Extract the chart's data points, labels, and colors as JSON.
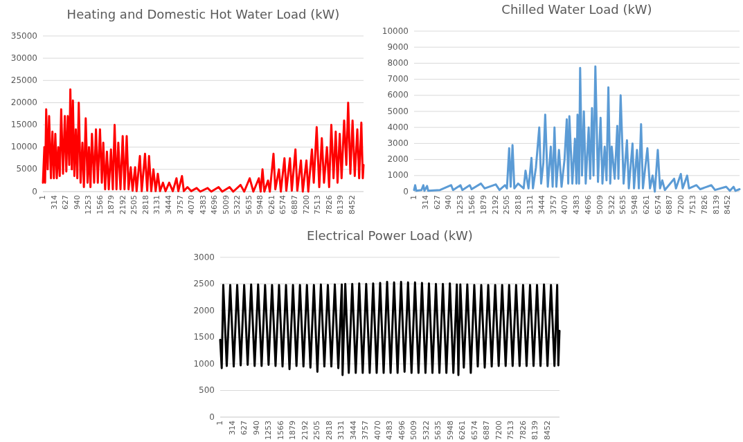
{
  "chart_data": [
    {
      "type": "line",
      "title": "Heating and Domestic Hot Water Load (kW)",
      "xlim": [
        1,
        8760
      ],
      "xticks": [
        1,
        314,
        627,
        940,
        1253,
        1566,
        1879,
        2192,
        2505,
        2818,
        3131,
        3444,
        3757,
        4070,
        4383,
        4696,
        5009,
        5322,
        5635,
        5948,
        6261,
        6574,
        6887,
        7200,
        7513,
        7826,
        8139,
        8452
      ],
      "ylim": [
        0,
        35000
      ],
      "yticks": [
        0,
        5000,
        10000,
        15000,
        20000,
        25000,
        30000,
        35000
      ],
      "grid": "y",
      "series": [
        {
          "color": "#ff0000",
          "x": [
            1,
            40,
            60,
            90,
            130,
            170,
            220,
            260,
            300,
            340,
            380,
            420,
            460,
            500,
            550,
            600,
            640,
            680,
            720,
            750,
            790,
            820,
            860,
            900,
            940,
            980,
            1030,
            1080,
            1120,
            1170,
            1220,
            1260,
            1300,
            1340,
            1400,
            1450,
            1500,
            1560,
            1610,
            1650,
            1700,
            1750,
            1800,
            1860,
            1910,
            1960,
            2010,
            2060,
            2120,
            2180,
            2230,
            2290,
            2340,
            2400,
            2450,
            2520,
            2560,
            2650,
            2700,
            2790,
            2850,
            2900,
            2960,
            3020,
            3080,
            3140,
            3200,
            3280,
            3350,
            3450,
            3550,
            3650,
            3700,
            3800,
            3850,
            3950,
            4050,
            4200,
            4300,
            4500,
            4600,
            4800,
            4900,
            5100,
            5200,
            5400,
            5500,
            5650,
            5750,
            5900,
            5950,
            6000,
            6050,
            6150,
            6200,
            6300,
            6350,
            6450,
            6500,
            6600,
            6650,
            6750,
            6800,
            6900,
            6950,
            7050,
            7100,
            7200,
            7250,
            7350,
            7400,
            7480,
            7550,
            7620,
            7680,
            7760,
            7820,
            7880,
            7940,
            8000,
            8050,
            8110,
            8160,
            8230,
            8290,
            8340,
            8400,
            8460,
            8520,
            8590,
            8640,
            8700,
            8740,
            8760
          ],
          "values": [
            2000,
            10000,
            2000,
            18500,
            5000,
            17000,
            3000,
            13500,
            3000,
            13000,
            3000,
            10000,
            3500,
            18500,
            4000,
            17000,
            4500,
            17000,
            6000,
            23000,
            5000,
            20500,
            3500,
            14000,
            3000,
            20000,
            2000,
            11000,
            1000,
            16500,
            2000,
            10000,
            1000,
            13000,
            2000,
            14000,
            2000,
            14000,
            2000,
            11000,
            500,
            9000,
            500,
            9500,
            500,
            15000,
            500,
            11000,
            500,
            12500,
            500,
            12500,
            500,
            5500,
            200,
            5500,
            100,
            8000,
            100,
            8500,
            200,
            8000,
            100,
            5000,
            100,
            4000,
            100,
            2000,
            100,
            2000,
            100,
            3000,
            100,
            3500,
            100,
            1000,
            100,
            800,
            0,
            800,
            0,
            1000,
            0,
            1000,
            0,
            1500,
            0,
            3000,
            0,
            3000,
            0,
            5000,
            0,
            2500,
            0,
            8500,
            500,
            5000,
            0,
            7500,
            200,
            7500,
            200,
            9500,
            200,
            7000,
            0,
            7000,
            0,
            9500,
            2000,
            14500,
            1000,
            12000,
            2000,
            10000,
            1000,
            15000,
            3000,
            13500,
            2000,
            13000,
            3000,
            16000,
            6000,
            20000,
            4000,
            16000,
            3500,
            14000,
            3000,
            15500,
            3000,
            6000
          ]
        }
      ]
    },
    {
      "type": "line",
      "title": "Chilled Water Load (kW)",
      "xlim": [
        1,
        8760
      ],
      "xticks": [
        1,
        314,
        627,
        940,
        1253,
        1566,
        1879,
        2192,
        2505,
        2818,
        3131,
        3444,
        3757,
        4070,
        4383,
        4696,
        5009,
        5322,
        5635,
        5948,
        6261,
        6574,
        6887,
        7200,
        7513,
        7826,
        8139,
        8452
      ],
      "ylim": [
        0,
        10000
      ],
      "yticks": [
        0,
        1000,
        2000,
        3000,
        4000,
        5000,
        6000,
        7000,
        8000,
        9000,
        10000
      ],
      "grid": "y",
      "series": [
        {
          "color": "#5b9bd5",
          "x": [
            1,
            30,
            60,
            200,
            250,
            280,
            350,
            380,
            700,
            1000,
            1050,
            1250,
            1300,
            1500,
            1550,
            1800,
            1900,
            2200,
            2300,
            2450,
            2500,
            2560,
            2600,
            2650,
            2700,
            2800,
            2950,
            3000,
            3080,
            3160,
            3200,
            3280,
            3370,
            3420,
            3480,
            3530,
            3600,
            3680,
            3730,
            3780,
            3830,
            3900,
            3970,
            4050,
            4110,
            4150,
            4180,
            4260,
            4330,
            4370,
            4400,
            4440,
            4470,
            4520,
            4570,
            4620,
            4700,
            4740,
            4790,
            4830,
            4880,
            4950,
            5020,
            5070,
            5130,
            5180,
            5230,
            5280,
            5320,
            5400,
            5470,
            5500,
            5560,
            5640,
            5730,
            5780,
            5880,
            5920,
            6000,
            6050,
            6110,
            6160,
            6280,
            6350,
            6420,
            6480,
            6560,
            6620,
            6680,
            6750,
            7000,
            7050,
            7180,
            7230,
            7350,
            7400,
            7600,
            7700,
            8000,
            8100,
            8400,
            8500,
            8600,
            8650,
            8760
          ],
          "values": [
            100,
            400,
            50,
            100,
            400,
            50,
            350,
            50,
            100,
            400,
            100,
            400,
            100,
            400,
            150,
            500,
            200,
            450,
            100,
            400,
            200,
            2700,
            300,
            2900,
            200,
            500,
            200,
            1300,
            200,
            2100,
            200,
            1500,
            4000,
            500,
            1800,
            4800,
            300,
            2800,
            300,
            4000,
            300,
            2600,
            300,
            2000,
            4500,
            500,
            4700,
            500,
            3300,
            500,
            4800,
            500,
            7700,
            1000,
            5000,
            500,
            4000,
            800,
            5200,
            1000,
            7800,
            600,
            4600,
            500,
            2800,
            700,
            6500,
            500,
            2800,
            800,
            4100,
            800,
            6000,
            500,
            3200,
            200,
            3000,
            200,
            2600,
            200,
            4200,
            200,
            2700,
            200,
            1000,
            0,
            2600,
            200,
            700,
            100,
            800,
            200,
            1100,
            200,
            1000,
            200,
            400,
            150,
            400,
            100,
            300,
            50,
            300,
            50,
            150
          ]
        }
      ]
    },
    {
      "type": "line",
      "title": "Electrical Power Load (kW)",
      "xlim": [
        1,
        8760
      ],
      "xticks": [
        1,
        314,
        627,
        940,
        1253,
        1566,
        1879,
        2192,
        2505,
        2818,
        3131,
        3444,
        3757,
        4070,
        4383,
        4696,
        5009,
        5322,
        5635,
        5948,
        6261,
        6574,
        6887,
        7200,
        7513,
        7826,
        8139,
        8452
      ],
      "ylim": [
        0,
        3000
      ],
      "yticks": [
        0,
        500,
        1000,
        1500,
        2000,
        2500,
        3000
      ],
      "grid": "y",
      "series": [
        {
          "color": "#000000",
          "x": [
            1,
            40,
            80,
            170,
            260,
            350,
            440,
            530,
            620,
            710,
            800,
            890,
            980,
            1070,
            1160,
            1250,
            1340,
            1430,
            1520,
            1610,
            1700,
            1790,
            1880,
            1970,
            2060,
            2150,
            2240,
            2330,
            2420,
            2510,
            2600,
            2690,
            2780,
            2870,
            2960,
            3050,
            3140,
            3160,
            3230,
            3320,
            3410,
            3500,
            3590,
            3680,
            3770,
            3860,
            3950,
            4040,
            4130,
            4220,
            4310,
            4400,
            4490,
            4580,
            4670,
            4760,
            4850,
            4940,
            5030,
            5120,
            5210,
            5300,
            5390,
            5480,
            5570,
            5660,
            5750,
            5840,
            5930,
            6020,
            6110,
            6150,
            6200,
            6290,
            6380,
            6470,
            6560,
            6650,
            6740,
            6830,
            6920,
            7010,
            7100,
            7190,
            7280,
            7370,
            7460,
            7550,
            7640,
            7730,
            7820,
            7910,
            8000,
            8090,
            8180,
            8270,
            8360,
            8450,
            8540,
            8630,
            8700,
            8730,
            8760
          ],
          "values": [
            1450,
            920,
            2480,
            960,
            2480,
            950,
            2480,
            970,
            2480,
            980,
            2490,
            960,
            2490,
            960,
            2480,
            980,
            2480,
            960,
            2480,
            950,
            2480,
            900,
            2480,
            960,
            2480,
            950,
            2480,
            930,
            2480,
            850,
            2490,
            950,
            2480,
            950,
            2490,
            920,
            2490,
            790,
            2500,
            830,
            2500,
            830,
            2510,
            830,
            2500,
            830,
            2510,
            830,
            2520,
            830,
            2540,
            830,
            2530,
            830,
            2540,
            850,
            2530,
            830,
            2530,
            830,
            2520,
            830,
            2510,
            830,
            2500,
            830,
            2500,
            830,
            2510,
            830,
            2490,
            790,
            2490,
            930,
            2490,
            830,
            2480,
            950,
            2480,
            930,
            2480,
            950,
            2480,
            960,
            2480,
            960,
            2480,
            960,
            2480,
            960,
            2480,
            960,
            2480,
            960,
            2480,
            960,
            2490,
            960,
            2480,
            960,
            2480,
            970,
            1620
          ]
        }
      ]
    }
  ]
}
